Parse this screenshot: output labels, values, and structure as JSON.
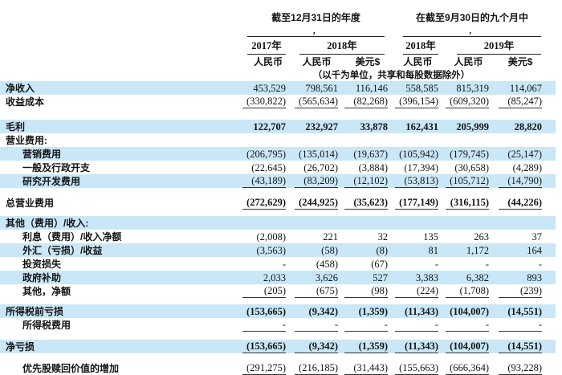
{
  "colors": {
    "row_highlight": "#c9e7f6",
    "rule": "#222222",
    "text": "#141414"
  },
  "header": {
    "groups": [
      {
        "title": "截至12月31日的年度",
        "mark": "，"
      },
      {
        "title": "在截至9月30日的九个月中",
        "mark": "，"
      }
    ],
    "years": [
      "2017年",
      "2018年",
      "2018年",
      "2019年"
    ],
    "currencies": [
      "人民币",
      "人民币",
      "美元$",
      "人民币",
      "人民币",
      "美元$"
    ],
    "note": "（以千为单位，共享和每股数据除外）"
  },
  "rows": [
    {
      "label": "净收入",
      "highlight": true,
      "values": [
        "453,529",
        "798,561",
        "116,146",
        "558,585",
        "815,319",
        "114,067"
      ]
    },
    {
      "label": "收益成本",
      "underline": true,
      "values": [
        "(330,822)",
        "(565,634)",
        "(82,268)",
        "(396,154)",
        "(609,320)",
        "(85,247)"
      ]
    },
    {
      "type": "spacer",
      "h": 14
    },
    {
      "label": "毛利",
      "highlight": true,
      "bold": true,
      "values": [
        "122,707",
        "232,927",
        "33,878",
        "162,431",
        "205,999",
        "28,820"
      ]
    },
    {
      "label": "营业费用:",
      "values": []
    },
    {
      "label": "营销费用",
      "indent": 1,
      "highlight": true,
      "values": [
        "(206,795)",
        "(135,014)",
        "(19,637)",
        "(105,942)",
        "(179,745)",
        "(25,147)"
      ]
    },
    {
      "label": "一般及行政开支",
      "indent": 1,
      "values": [
        "(22,645)",
        "(26,702)",
        "(3,884)",
        "(17,394)",
        "(30,658)",
        "(4,289)"
      ]
    },
    {
      "label": "研究开发费用",
      "indent": 1,
      "highlight": true,
      "underline": true,
      "values": [
        "(43,189)",
        "(83,209)",
        "(12,102)",
        "(53,813)",
        "(105,712)",
        "(14,790)"
      ]
    },
    {
      "type": "spacer",
      "h": 10
    },
    {
      "label": "总营业费用",
      "bold": true,
      "underline": true,
      "values": [
        "(272,629)",
        "(244,925)",
        "(35,623)",
        "(177,149)",
        "(316,115)",
        "(44,226)"
      ]
    },
    {
      "type": "spacer",
      "h": 8
    },
    {
      "label": "其他（费用）/收入:",
      "highlight": true,
      "values": []
    },
    {
      "label": "利息（费用）/收入净额",
      "indent": 1,
      "values": [
        "(2,008)",
        "221",
        "32",
        "135",
        "263",
        "37"
      ]
    },
    {
      "label": "外汇（亏损）/收益",
      "indent": 1,
      "highlight": true,
      "values": [
        "(3,563)",
        "(58)",
        "(8)",
        "81",
        "1,172",
        "164"
      ]
    },
    {
      "label": "投资损失",
      "indent": 1,
      "values": [
        "-",
        "(458)",
        "(67)",
        "-",
        "-",
        "-"
      ]
    },
    {
      "label": "政府补助",
      "indent": 1,
      "highlight": true,
      "values": [
        "2,033",
        "3,626",
        "527",
        "3,383",
        "6,382",
        "893"
      ]
    },
    {
      "label": "其他，净额",
      "indent": 1,
      "underline": true,
      "values": [
        "(205)",
        "(675)",
        "(98)",
        "(224)",
        "(1,708)",
        "(239)"
      ]
    },
    {
      "type": "spacer",
      "h": 8
    },
    {
      "label": "所得税前亏损",
      "highlight": true,
      "bold": true,
      "values": [
        "(153,665)",
        "(9,342)",
        "(1,359)",
        "(11,343)",
        "(104,007)",
        "(14,551)"
      ]
    },
    {
      "label": "所得税费用",
      "indent": 1,
      "underline": true,
      "values": [
        "-",
        "-",
        "-",
        "-",
        "-",
        "-"
      ]
    },
    {
      "type": "spacer",
      "h": 10
    },
    {
      "label": "净亏损",
      "highlight": true,
      "bold": true,
      "underline": true,
      "values": [
        "(153,665)",
        "(9,342)",
        "(1,359)",
        "(11,343)",
        "(104,007)",
        "(14,551)"
      ]
    },
    {
      "type": "spacer",
      "h": 10
    },
    {
      "label": "优先股赎回价值的增加",
      "indent": 1,
      "underline": true,
      "values": [
        "(291,275)",
        "(216,185)",
        "(31,443)",
        "(155,663)",
        "(666,364)",
        "(93,228)"
      ]
    }
  ]
}
